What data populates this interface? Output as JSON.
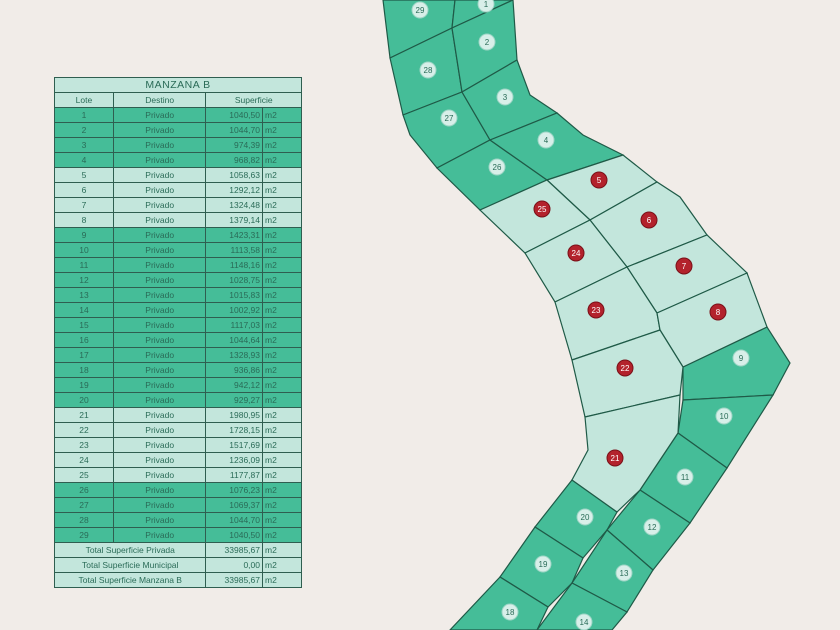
{
  "table": {
    "title": "MANZANA B",
    "headers": [
      "Lote",
      "Destino",
      "Superficie"
    ],
    "unit": "m2",
    "rows": [
      {
        "lote": "1",
        "destino": "Privado",
        "superficie": "1040,50",
        "shade": "dark"
      },
      {
        "lote": "2",
        "destino": "Privado",
        "superficie": "1044,70",
        "shade": "dark"
      },
      {
        "lote": "3",
        "destino": "Privado",
        "superficie": "974,39",
        "shade": "dark"
      },
      {
        "lote": "4",
        "destino": "Privado",
        "superficie": "968,82",
        "shade": "dark"
      },
      {
        "lote": "5",
        "destino": "Privado",
        "superficie": "1058,63",
        "shade": "light"
      },
      {
        "lote": "6",
        "destino": "Privado",
        "superficie": "1292,12",
        "shade": "light"
      },
      {
        "lote": "7",
        "destino": "Privado",
        "superficie": "1324,48",
        "shade": "light"
      },
      {
        "lote": "8",
        "destino": "Privado",
        "superficie": "1379,14",
        "shade": "light"
      },
      {
        "lote": "9",
        "destino": "Privado",
        "superficie": "1423,31",
        "shade": "dark"
      },
      {
        "lote": "10",
        "destino": "Privado",
        "superficie": "1113,58",
        "shade": "dark"
      },
      {
        "lote": "11",
        "destino": "Privado",
        "superficie": "1148,16",
        "shade": "dark"
      },
      {
        "lote": "12",
        "destino": "Privado",
        "superficie": "1028,75",
        "shade": "dark"
      },
      {
        "lote": "13",
        "destino": "Privado",
        "superficie": "1015,83",
        "shade": "dark"
      },
      {
        "lote": "14",
        "destino": "Privado",
        "superficie": "1002,92",
        "shade": "dark"
      },
      {
        "lote": "15",
        "destino": "Privado",
        "superficie": "1117,03",
        "shade": "dark"
      },
      {
        "lote": "16",
        "destino": "Privado",
        "superficie": "1044,64",
        "shade": "dark"
      },
      {
        "lote": "17",
        "destino": "Privado",
        "superficie": "1328,93",
        "shade": "dark"
      },
      {
        "lote": "18",
        "destino": "Privado",
        "superficie": "936,86",
        "shade": "dark"
      },
      {
        "lote": "19",
        "destino": "Privado",
        "superficie": "942,12",
        "shade": "dark"
      },
      {
        "lote": "20",
        "destino": "Privado",
        "superficie": "929,27",
        "shade": "dark"
      },
      {
        "lote": "21",
        "destino": "Privado",
        "superficie": "1980,95",
        "shade": "light"
      },
      {
        "lote": "22",
        "destino": "Privado",
        "superficie": "1728,15",
        "shade": "light"
      },
      {
        "lote": "23",
        "destino": "Privado",
        "superficie": "1517,69",
        "shade": "light"
      },
      {
        "lote": "24",
        "destino": "Privado",
        "superficie": "1236,09",
        "shade": "light"
      },
      {
        "lote": "25",
        "destino": "Privado",
        "superficie": "1177,87",
        "shade": "light"
      },
      {
        "lote": "26",
        "destino": "Privado",
        "superficie": "1076,23",
        "shade": "dark"
      },
      {
        "lote": "27",
        "destino": "Privado",
        "superficie": "1069,37",
        "shade": "dark"
      },
      {
        "lote": "28",
        "destino": "Privado",
        "superficie": "1044,70",
        "shade": "dark"
      },
      {
        "lote": "29",
        "destino": "Privado",
        "superficie": "1040,50",
        "shade": "dark"
      }
    ],
    "totals": [
      {
        "label": "Total Superficie Privada",
        "value": "33985,67"
      },
      {
        "label": "Total Superficie Municipal",
        "value": "0,00"
      },
      {
        "label": "Total Superficie Manzana B",
        "value": "33985,67"
      }
    ]
  },
  "map": {
    "lots_dark": [
      "29",
      "1",
      "28",
      "2",
      "27",
      "3",
      "26",
      "4",
      "9",
      "10",
      "11",
      "20",
      "12",
      "19",
      "13",
      "18",
      "14"
    ],
    "lots_light": [
      "5",
      "25",
      "6",
      "24",
      "7",
      "23",
      "8",
      "22",
      "21"
    ]
  },
  "colors": {
    "dark_lot": "#45bd98",
    "light_lot": "#c3e6dc",
    "boundary": "#1f5a47",
    "dark_marker": "#d8efe9",
    "light_marker": "#b3222c",
    "background": "#f1ece8"
  }
}
